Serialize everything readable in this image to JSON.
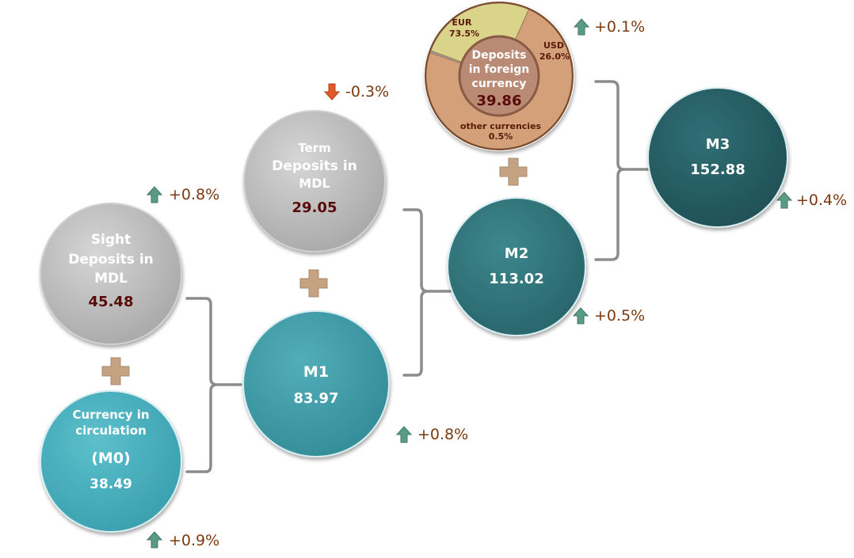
{
  "nodes": {
    "sight": {
      "lines": [
        "Sight",
        "Deposits in",
        "MDL"
      ],
      "value": "45.48"
    },
    "term": {
      "lines": [
        "Term",
        "Deposits in",
        "MDL"
      ],
      "value": "29.05"
    },
    "m0": {
      "lines": [
        "Currency in",
        "circulation"
      ],
      "sub": "(M0)",
      "value": "38.49"
    },
    "m1": {
      "label": "M1",
      "value": "83.97"
    },
    "m2": {
      "label": "M2",
      "value": "113.02"
    },
    "m3": {
      "label": "M3",
      "value": "152.88"
    },
    "foreign": {
      "lines": [
        "Deposits",
        "in foreign",
        "currency"
      ],
      "value": "39.86",
      "segments": [
        {
          "label": "EUR",
          "percent": "73.5%",
          "share": 73.5,
          "color": "#d4a07a"
        },
        {
          "label": "USD",
          "percent": "26.0%",
          "share": 26.0,
          "color": "#d9d48a"
        },
        {
          "label": "other currencies",
          "percent": "0.5%",
          "share": 0.5,
          "color": "#9e9e9e"
        }
      ]
    }
  },
  "changes": {
    "sight": {
      "text": "+0.8%",
      "dir": "up"
    },
    "term": {
      "text": "-0.3%",
      "dir": "down"
    },
    "m0": {
      "text": "+0.9%",
      "dir": "up"
    },
    "m1": {
      "text": "+0.8%",
      "dir": "up"
    },
    "m2": {
      "text": "+0.5%",
      "dir": "up"
    },
    "m3": {
      "text": "+0.4%",
      "dir": "up"
    },
    "foreign": {
      "text": "+0.1%",
      "dir": "up"
    }
  },
  "colors": {
    "grey_node": "#b3b3b3",
    "m0": "#4aaebb",
    "m1": "#3e9ba6",
    "m2": "#2f7379",
    "m3": "#255c62",
    "up_arrow": "#5b9a84",
    "down_arrow": "#e05a2a",
    "plus": "#c4a282",
    "bracket": "#8c8c8c",
    "value_dark": "#5a0a0a"
  }
}
